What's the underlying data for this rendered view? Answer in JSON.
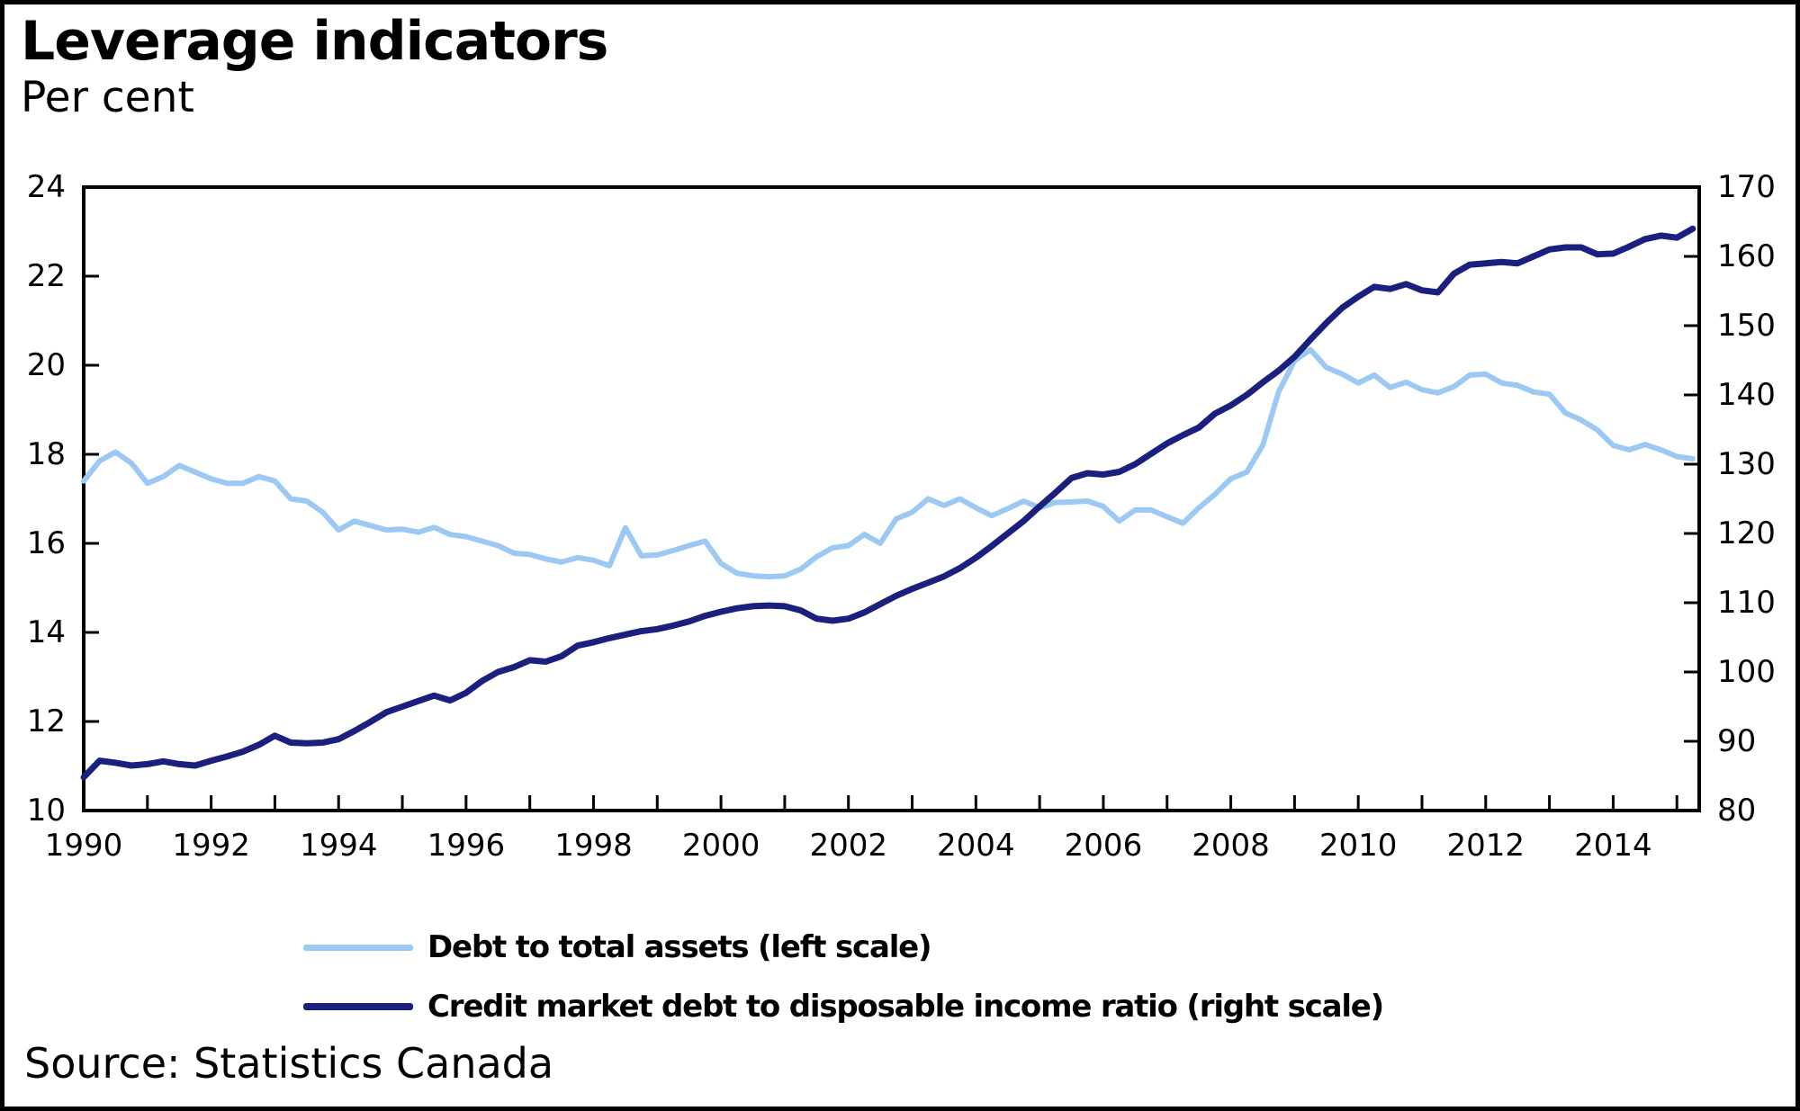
{
  "header": {
    "title": "Leverage indicators",
    "subtitle": "Per cent"
  },
  "source": {
    "text": "Source: Statistics Canada"
  },
  "chart_data": {
    "type": "line",
    "title": "Leverage indicators",
    "units": "Per cent",
    "grid": false,
    "legend_position": "bottom",
    "x_start": 1990,
    "x_step_years": 0.25,
    "x_end": 2015.25,
    "x_axis": {
      "min": 1990,
      "max": 2015.35,
      "minor_tick_every": 1,
      "label_years": [
        1990,
        1992,
        1994,
        1996,
        1998,
        2000,
        2002,
        2004,
        2006,
        2008,
        2010,
        2012,
        2014
      ]
    },
    "left_axis": {
      "min": 10,
      "max": 24,
      "ticks": [
        24,
        22,
        20,
        18,
        16,
        14,
        12,
        10
      ]
    },
    "right_axis": {
      "min": 80,
      "max": 170,
      "ticks": [
        170,
        160,
        150,
        140,
        130,
        120,
        110,
        100,
        90,
        80
      ]
    },
    "series": [
      {
        "name": "Debt to total assets (left scale)",
        "axis": "left",
        "color": "#9cc9f4",
        "values": [
          17.4,
          17.85,
          18.05,
          17.8,
          17.35,
          17.5,
          17.75,
          17.6,
          17.45,
          17.35,
          17.35,
          17.5,
          17.4,
          17.0,
          16.95,
          16.7,
          16.3,
          16.5,
          16.4,
          16.3,
          16.32,
          16.25,
          16.36,
          16.2,
          16.15,
          16.05,
          15.95,
          15.78,
          15.75,
          15.65,
          15.58,
          15.68,
          15.62,
          15.5,
          16.35,
          15.72,
          15.74,
          15.84,
          15.95,
          16.05,
          15.55,
          15.33,
          15.27,
          15.25,
          15.27,
          15.42,
          15.7,
          15.9,
          15.95,
          16.2,
          16.0,
          16.55,
          16.7,
          17.0,
          16.85,
          17.0,
          16.8,
          16.62,
          16.78,
          16.95,
          16.8,
          16.92,
          16.93,
          16.95,
          16.83,
          16.5,
          16.75,
          16.75,
          16.6,
          16.45,
          16.8,
          17.1,
          17.45,
          17.6,
          18.2,
          19.4,
          20.1,
          20.35,
          19.95,
          19.8,
          19.6,
          19.78,
          19.5,
          19.62,
          19.45,
          19.38,
          19.52,
          19.78,
          19.8,
          19.6,
          19.55,
          19.4,
          19.35,
          18.93,
          18.77,
          18.55,
          18.2,
          18.1,
          18.22,
          18.1,
          17.95,
          17.9
        ]
      },
      {
        "name": "Credit market debt to disposable income ratio (right scale)",
        "axis": "right",
        "color": "#1b1f7e",
        "values": [
          84.8,
          87.2,
          86.9,
          86.5,
          86.7,
          87.1,
          86.7,
          86.5,
          87.2,
          87.8,
          88.5,
          89.5,
          90.8,
          89.8,
          89.7,
          89.8,
          90.3,
          91.5,
          92.8,
          94.2,
          95.0,
          95.8,
          96.6,
          95.9,
          97.0,
          98.7,
          100.0,
          100.7,
          101.7,
          101.5,
          102.3,
          103.8,
          104.3,
          104.9,
          105.4,
          105.9,
          106.2,
          106.7,
          107.3,
          108.1,
          108.7,
          109.2,
          109.5,
          109.6,
          109.5,
          108.9,
          107.7,
          107.4,
          107.7,
          108.6,
          109.8,
          111.0,
          112.0,
          112.9,
          113.8,
          115.0,
          116.5,
          118.2,
          120.0,
          121.8,
          123.9,
          125.9,
          128.0,
          128.7,
          128.5,
          128.9,
          130.0,
          131.5,
          133.0,
          134.2,
          135.3,
          137.3,
          138.5,
          140.0,
          141.8,
          143.5,
          145.5,
          148.0,
          150.4,
          152.6,
          154.2,
          155.6,
          155.3,
          156.0,
          155.1,
          154.8,
          157.5,
          158.8,
          159.0,
          159.2,
          159.0,
          160.0,
          161.0,
          161.3,
          161.3,
          160.3,
          160.4,
          161.4,
          162.5,
          163.0,
          162.7,
          164.0
        ]
      }
    ]
  }
}
